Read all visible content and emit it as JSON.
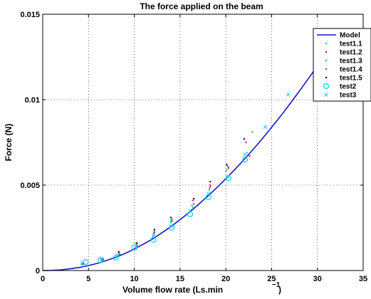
{
  "chart_data": {
    "type": "scatter",
    "title": "The force applied on the beam",
    "xlabel": "Volume flow rate (Ls.min",
    "xlabel_exponent": "−1",
    "xlabel_close": ")",
    "ylabel": "Force (N)",
    "xlim": [
      0,
      35
    ],
    "ylim": [
      0,
      0.015
    ],
    "x_ticks": [
      0,
      5,
      10,
      15,
      20,
      25,
      30,
      35
    ],
    "x_tick_labels": [
      "0",
      "5",
      "10",
      "15",
      "20",
      "25",
      "30",
      "35"
    ],
    "y_ticks": [
      0,
      0.005,
      0.01,
      0.015
    ],
    "y_tick_labels": [
      "0",
      "0.005",
      "0.01",
      "0.015"
    ],
    "grid": true,
    "legend_position": "top-right",
    "model": {
      "name": "Model",
      "color": "#1515c8",
      "x": [
        0,
        1,
        2,
        3,
        4,
        5,
        6,
        7,
        8,
        9,
        10,
        11,
        12,
        13,
        14,
        15,
        16,
        17,
        18,
        19,
        20,
        21,
        22,
        23,
        24,
        25,
        26,
        27,
        28,
        29,
        30,
        31,
        32
      ],
      "y": [
        0,
        8e-06,
        4e-05,
        0.0001,
        0.00018,
        0.00029,
        0.00042,
        0.00059,
        0.00078,
        0.001,
        0.00126,
        0.00154,
        0.00185,
        0.0022,
        0.00257,
        0.00298,
        0.0034,
        0.00386,
        0.00434,
        0.00484,
        0.00537,
        0.00592,
        0.0065,
        0.0071,
        0.00773,
        0.00838,
        0.00905,
        0.00975,
        0.01048,
        0.01122,
        0.01198,
        0.01275,
        0.01352
      ]
    },
    "series": [
      {
        "name": "test1.1",
        "marker": "dot",
        "color": "#00d0ff",
        "x": [
          4.3,
          6.4,
          8.3,
          10.2,
          12.1,
          14.0,
          16.4,
          18.2,
          20.0,
          22.3
        ],
        "y": [
          0.00035,
          0.0006,
          0.0009,
          0.0014,
          0.0021,
          0.0028,
          0.0037,
          0.0047,
          0.0058,
          0.0069
        ]
      },
      {
        "name": "test1.2",
        "marker": "dot",
        "color": "#d81010",
        "x": [
          4.4,
          6.5,
          8.4,
          10.3,
          12.2,
          14.1,
          16.5,
          18.3,
          20.3,
          22.6
        ],
        "y": [
          0.00038,
          0.00062,
          0.00095,
          0.00145,
          0.0022,
          0.0029,
          0.0039,
          0.0049,
          0.006,
          0.0067
        ]
      },
      {
        "name": "test1.3",
        "marker": "dot",
        "color": "#22cc22",
        "x": [
          4.5,
          6.6,
          8.4,
          10.3,
          12.1,
          14.0,
          16.3,
          18.2,
          20.1,
          22.9
        ],
        "y": [
          0.0004,
          0.00065,
          0.001,
          0.0015,
          0.0022,
          0.0029,
          0.0038,
          0.0048,
          0.0059,
          0.0081
        ]
      },
      {
        "name": "test1.4",
        "marker": "dot",
        "color": "#e0149a",
        "x": [
          4.5,
          6.5,
          8.3,
          10.2,
          12.2,
          14.1,
          16.4,
          18.3,
          20.2,
          22.2
        ],
        "y": [
          0.00039,
          0.00063,
          0.00105,
          0.0016,
          0.0023,
          0.003,
          0.0041,
          0.005,
          0.0061,
          0.0075
        ]
      },
      {
        "name": "test1.5",
        "marker": "dot",
        "color": "#111111",
        "x": [
          4.4,
          6.6,
          8.3,
          10.3,
          12.2,
          14.0,
          16.5,
          18.3,
          20.1,
          22.0
        ],
        "y": [
          0.0004,
          0.00066,
          0.0011,
          0.0016,
          0.0024,
          0.0031,
          0.0042,
          0.0052,
          0.0062,
          0.0077
        ]
      },
      {
        "name": "test2",
        "marker": "circle",
        "color": "#00d0ff",
        "x": [
          4.7,
          6.3,
          8.0,
          10.0,
          12.1,
          14.1,
          16.1,
          18.1,
          20.3,
          22.1
        ],
        "y": [
          0.0005,
          0.0006,
          0.00075,
          0.00135,
          0.0018,
          0.0025,
          0.0033,
          0.0043,
          0.0054,
          0.0065
        ]
      },
      {
        "name": "test3",
        "marker": "x",
        "color": "#00d0ff",
        "x": [
          4.3,
          6.4,
          8.2,
          10.2,
          12.1,
          14.0,
          16.1,
          18.1,
          20.2,
          22.1,
          24.3,
          26.8
        ],
        "y": [
          0.00045,
          0.0007,
          0.0009,
          0.0013,
          0.002,
          0.0026,
          0.0035,
          0.0045,
          0.0055,
          0.0068,
          0.0084,
          0.0103
        ]
      }
    ]
  }
}
